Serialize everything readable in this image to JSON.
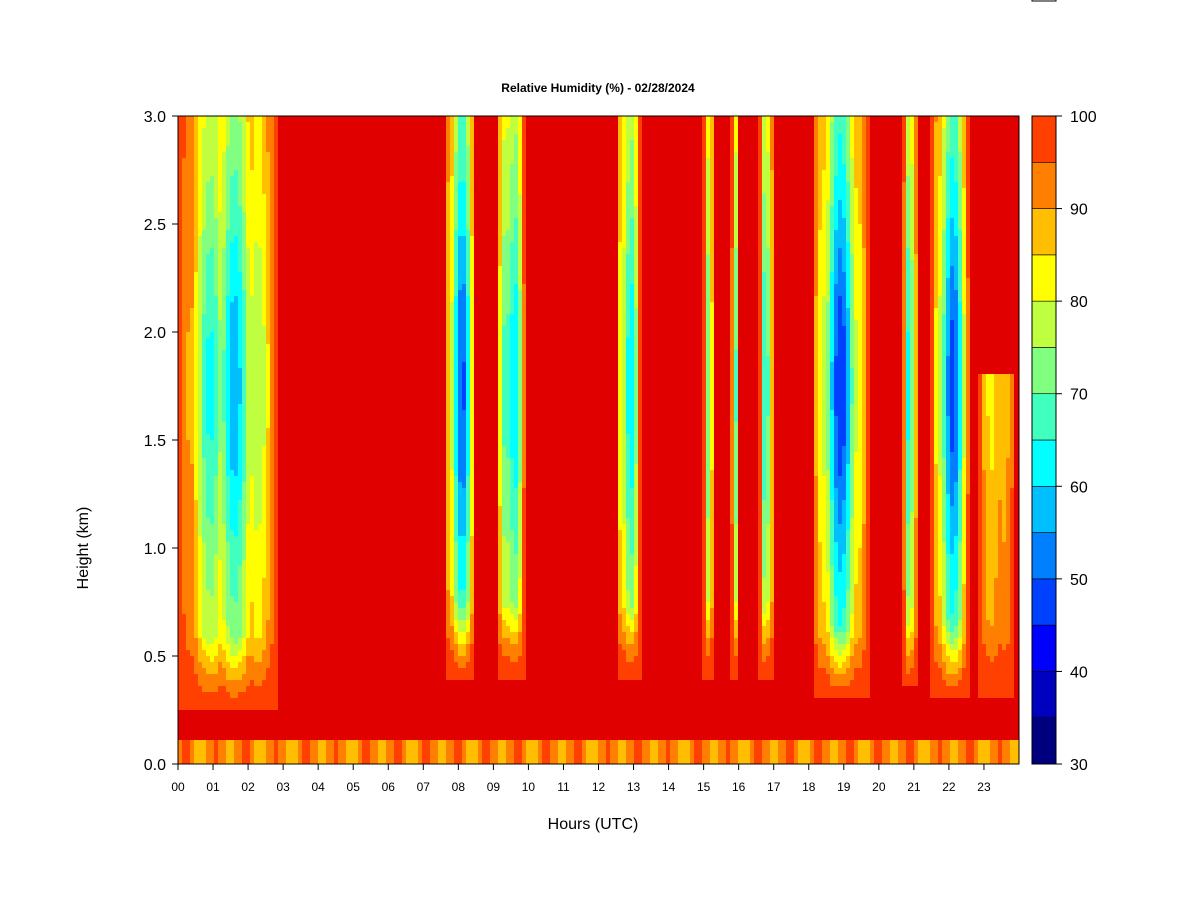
{
  "chart_data": {
    "type": "heatmap",
    "title": "Relative Humidity (%) - 02/28/2024",
    "xlabel": "Hours (UTC)",
    "ylabel": "Height (km)",
    "x_unit": "hours",
    "xlim": [
      0,
      24
    ],
    "ylim": [
      0,
      3.0
    ],
    "x_ticks": [
      "00",
      "01",
      "02",
      "03",
      "04",
      "05",
      "06",
      "07",
      "08",
      "09",
      "10",
      "11",
      "12",
      "13",
      "14",
      "15",
      "16",
      "17",
      "18",
      "19",
      "20",
      "21",
      "22",
      "23"
    ],
    "y_ticks": [
      "0.0",
      "0.5",
      "1.0",
      "1.5",
      "2.0",
      "2.5",
      "3.0"
    ],
    "colorbar": {
      "min": 30,
      "max": 100,
      "step": 5,
      "tick_labels": [
        "30",
        "40",
        "50",
        "60",
        "70",
        "80",
        "90",
        "100"
      ],
      "colors": [
        "#00007F",
        "#0000BF",
        "#0000FF",
        "#0040FF",
        "#0080FF",
        "#00BFFF",
        "#00FFFF",
        "#40FFBF",
        "#80FF80",
        "#BFFF40",
        "#FFFF00",
        "#FFBF00",
        "#FF8000",
        "#FF4000",
        "#E00000",
        "#7F0000"
      ]
    },
    "background_rh": 100,
    "surface_layer": {
      "height_km": 0.12,
      "rh": 88
    },
    "dry_bands": [
      {
        "start_hour": 0.0,
        "end_hour": 2.9,
        "top_km": 3.0,
        "base_km": 0.25,
        "min_rh": 55
      },
      {
        "start_hour": 7.6,
        "end_hour": 8.5,
        "top_km": 3.0,
        "base_km": 0.4,
        "min_rh": 45
      },
      {
        "start_hour": 9.1,
        "end_hour": 9.9,
        "top_km": 3.0,
        "base_km": 0.4,
        "min_rh": 45
      },
      {
        "start_hour": 12.5,
        "end_hour": 13.2,
        "top_km": 3.0,
        "base_km": 0.4,
        "min_rh": 50
      },
      {
        "start_hour": 15.0,
        "end_hour": 15.3,
        "top_km": 3.0,
        "base_km": 0.4,
        "min_rh": 55
      },
      {
        "start_hour": 15.8,
        "end_hour": 16.0,
        "top_km": 3.0,
        "base_km": 0.4,
        "min_rh": 55
      },
      {
        "start_hour": 16.6,
        "end_hour": 17.0,
        "top_km": 3.0,
        "base_km": 0.4,
        "min_rh": 45
      },
      {
        "start_hour": 18.1,
        "end_hour": 19.7,
        "top_km": 3.0,
        "base_km": 0.3,
        "min_rh": 45
      },
      {
        "start_hour": 20.7,
        "end_hour": 21.1,
        "top_km": 3.0,
        "base_km": 0.35,
        "min_rh": 45
      },
      {
        "start_hour": 21.5,
        "end_hour": 22.6,
        "top_km": 3.0,
        "base_km": 0.3,
        "min_rh": 45
      },
      {
        "start_hour": 22.8,
        "end_hour": 23.9,
        "top_km": 1.8,
        "base_km": 0.3,
        "min_rh": 80
      }
    ]
  }
}
